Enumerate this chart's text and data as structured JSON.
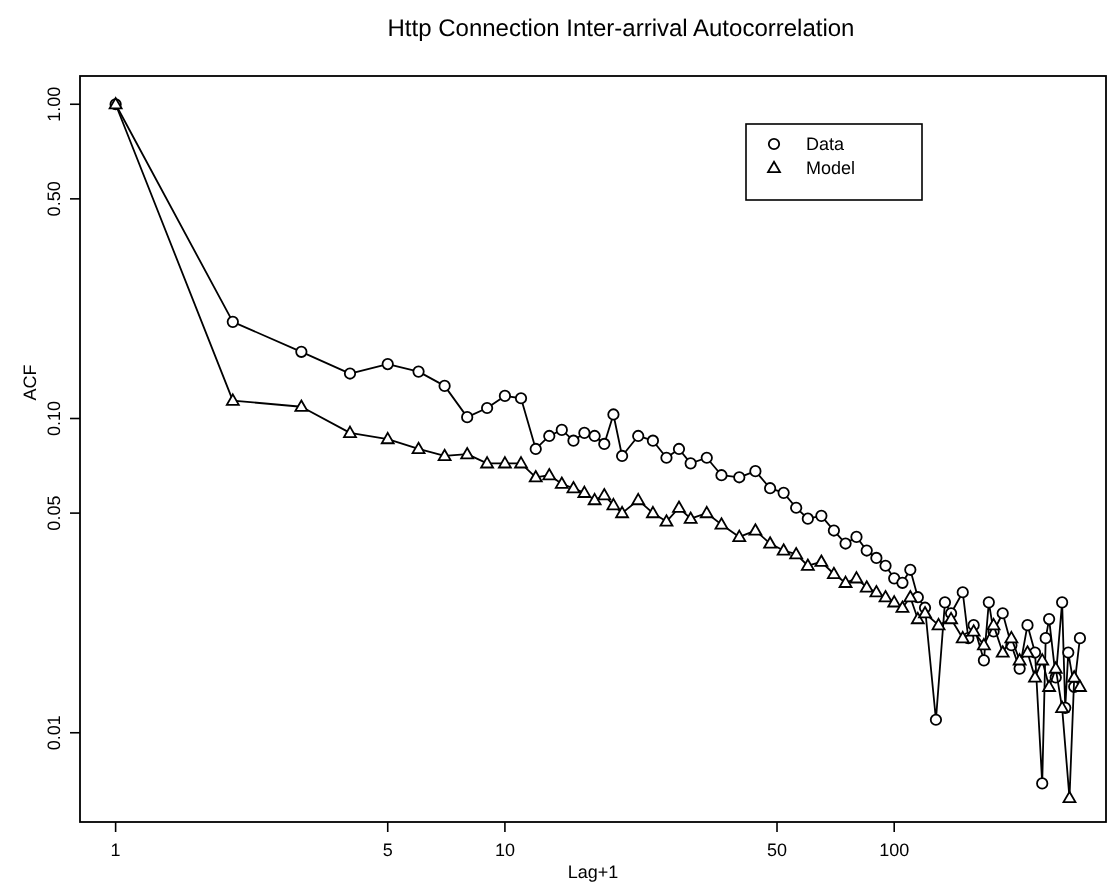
{
  "chart_data": {
    "type": "line",
    "title": "Http Connection Inter-arrival Autocorrelation",
    "xlabel": "Lag+1",
    "ylabel": "ACF",
    "log": "xy",
    "grid": false,
    "legend": "top right",
    "line_style": "solid",
    "xlim": [
      0.81,
      350
    ],
    "ylim": [
      0.0052,
      1.23
    ],
    "xticks": [
      1,
      5,
      10,
      50,
      100
    ],
    "yticks": [
      {
        "value": 1,
        "label": "1.00"
      },
      {
        "value": 0.5,
        "label": "0.50"
      },
      {
        "value": 0.1,
        "label": "0.10"
      },
      {
        "value": 0.05,
        "label": "0.05"
      },
      {
        "value": 0.01,
        "label": "0.01"
      }
    ],
    "series": [
      {
        "name": "Data",
        "color": "#000000",
        "marker": "circle",
        "x": [
          1,
          2,
          3,
          4,
          5,
          6,
          7,
          8,
          9,
          10,
          11,
          12,
          13,
          14,
          15,
          16,
          17,
          18,
          19,
          20,
          22,
          24,
          26,
          28,
          30,
          33,
          36,
          40,
          44,
          48,
          52,
          56,
          60,
          65,
          70,
          75,
          80,
          85,
          90,
          95,
          100,
          105,
          110,
          115,
          120,
          128,
          135,
          140,
          150,
          155,
          160,
          170,
          175,
          180,
          190,
          200,
          210,
          220,
          230,
          240,
          245,
          250,
          260,
          270,
          275,
          280,
          290,
          300
        ],
        "values": [
          1,
          0.203,
          0.163,
          0.139,
          0.149,
          0.141,
          0.127,
          0.101,
          0.108,
          0.118,
          0.116,
          0.08,
          0.088,
          0.092,
          0.085,
          0.09,
          0.088,
          0.083,
          0.103,
          0.076,
          0.088,
          0.085,
          0.075,
          0.08,
          0.072,
          0.075,
          0.066,
          0.065,
          0.068,
          0.06,
          0.058,
          0.052,
          0.048,
          0.049,
          0.044,
          0.04,
          0.042,
          0.038,
          0.036,
          0.034,
          0.031,
          0.03,
          0.033,
          0.027,
          0.025,
          0.011,
          0.026,
          0.024,
          0.028,
          0.02,
          0.022,
          0.017,
          0.026,
          0.021,
          0.024,
          0.019,
          0.016,
          0.022,
          0.018,
          0.0069,
          0.02,
          0.023,
          0.015,
          0.026,
          0.012,
          0.018,
          0.014,
          0.02
        ]
      },
      {
        "name": "Model",
        "color": "#000000",
        "marker": "triangle",
        "x": [
          1,
          2,
          3,
          4,
          5,
          6,
          7,
          8,
          9,
          10,
          11,
          12,
          13,
          14,
          15,
          16,
          17,
          18,
          19,
          20,
          22,
          24,
          26,
          28,
          30,
          33,
          36,
          40,
          44,
          48,
          52,
          56,
          60,
          65,
          70,
          75,
          80,
          85,
          90,
          95,
          100,
          105,
          110,
          115,
          120,
          130,
          140,
          150,
          160,
          170,
          180,
          190,
          200,
          210,
          220,
          230,
          240,
          250,
          260,
          270,
          282,
          290,
          300
        ],
        "values": [
          1,
          0.114,
          0.109,
          0.09,
          0.086,
          0.08,
          0.076,
          0.077,
          0.072,
          0.072,
          0.072,
          0.065,
          0.066,
          0.062,
          0.06,
          0.058,
          0.055,
          0.057,
          0.053,
          0.05,
          0.055,
          0.05,
          0.047,
          0.052,
          0.048,
          0.05,
          0.046,
          0.042,
          0.044,
          0.04,
          0.038,
          0.037,
          0.034,
          0.035,
          0.032,
          0.03,
          0.031,
          0.029,
          0.028,
          0.027,
          0.026,
          0.025,
          0.027,
          0.023,
          0.024,
          0.022,
          0.023,
          0.02,
          0.021,
          0.019,
          0.022,
          0.018,
          0.02,
          0.017,
          0.018,
          0.015,
          0.017,
          0.014,
          0.016,
          0.012,
          0.0062,
          0.015,
          0.014
        ]
      }
    ]
  }
}
